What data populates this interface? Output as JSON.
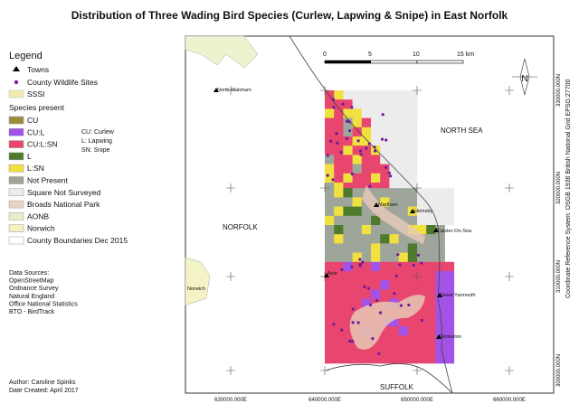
{
  "title": "Distribution of Three Wading Bird Species (Curlew, Lapwing & Snipe) in East Norfolk",
  "legend": {
    "heading": "Legend",
    "items": [
      "Towns",
      "County Wildlife Sites",
      "SSSI"
    ],
    "species_heading": "Species present",
    "species": [
      "CU",
      "CU:L",
      "CU:L:SN",
      "L",
      "L:SN",
      "Not Present",
      "Square Not Surveyed",
      "Broads National Park",
      "AONB",
      "Norwich",
      "County Boundaries Dec 2015"
    ],
    "key": [
      "CU: Curlew",
      "L: Lapwing",
      "SN: Snipe"
    ]
  },
  "sources": [
    "Data Sources:",
    "OpenStreetMap",
    "Ordnance Survey",
    "Natural England",
    "Office National Statistics",
    "BTO - BirdTrack"
  ],
  "author": "Author: Caroline Spinks",
  "date": "Date Created: April 2017",
  "map": {
    "regions": [
      "NORTH SEA",
      "NORFOLK",
      "SUFFOLK"
    ],
    "towns": [
      "North Walsham",
      "Martham",
      "Hemsby",
      "Caister-On-Sea",
      "Acle",
      "Great Yarmouth",
      "Gorleston",
      "Norwich"
    ],
    "x_ticks": [
      "630000.000E",
      "640000.000E",
      "650000.000E",
      "660000.000E"
    ],
    "y_ticks": [
      "330000.000N",
      "320000.000N",
      "310000.000N",
      "300000.000N"
    ],
    "scale": [
      "0",
      "5",
      "10",
      "15 km"
    ],
    "north": "N",
    "crs": "Coordinate Reference System: OSGB 1936 British National Grid EPSG:27700"
  }
}
